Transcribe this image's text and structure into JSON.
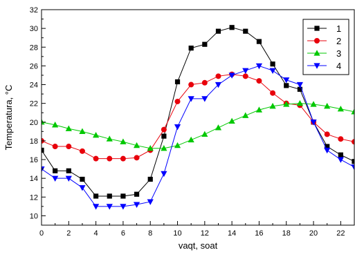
{
  "chart_data": {
    "type": "line",
    "xlabel": "vaqt, soat",
    "ylabel": "Temperatura, °C",
    "xlim": [
      0,
      23
    ],
    "ylim": [
      9,
      32
    ],
    "xticks": [
      0,
      2,
      4,
      6,
      8,
      10,
      12,
      14,
      16,
      18,
      20,
      22
    ],
    "yticks": [
      10,
      12,
      14,
      16,
      18,
      20,
      22,
      24,
      26,
      28,
      30,
      32
    ],
    "legend_position": "top-right",
    "grid": false,
    "x": [
      0,
      1,
      2,
      3,
      4,
      5,
      6,
      7,
      8,
      9,
      10,
      11,
      12,
      13,
      14,
      15,
      16,
      17,
      18,
      19,
      20,
      21,
      22,
      23
    ],
    "series": [
      {
        "name": "1",
        "color": "#000000",
        "marker": "square",
        "values": [
          17.0,
          14.8,
          14.8,
          13.9,
          12.1,
          12.1,
          12.1,
          12.3,
          13.9,
          18.5,
          24.3,
          27.9,
          28.3,
          29.7,
          30.1,
          29.7,
          28.6,
          26.2,
          23.9,
          23.5,
          20.0,
          17.4,
          16.5,
          15.8
        ]
      },
      {
        "name": "2",
        "color": "#e8000b",
        "marker": "circle",
        "values": [
          18.0,
          17.4,
          17.4,
          16.9,
          16.1,
          16.1,
          16.1,
          16.2,
          17.0,
          19.2,
          22.2,
          24.0,
          24.2,
          24.9,
          25.1,
          24.9,
          24.4,
          23.1,
          22.0,
          21.8,
          20.0,
          18.7,
          18.2,
          17.9
        ]
      },
      {
        "name": "3",
        "color": "#00c800",
        "marker": "triangle-up",
        "values": [
          20.0,
          19.7,
          19.3,
          19.0,
          18.6,
          18.2,
          17.9,
          17.5,
          17.2,
          17.2,
          17.5,
          18.1,
          18.7,
          19.4,
          20.1,
          20.7,
          21.3,
          21.7,
          21.9,
          22.0,
          21.9,
          21.7,
          21.4,
          21.1
        ]
      },
      {
        "name": "4",
        "color": "#0000ff",
        "marker": "triangle-down",
        "values": [
          15.0,
          14.0,
          14.0,
          13.0,
          11.0,
          11.0,
          11.0,
          11.2,
          11.5,
          14.5,
          19.5,
          22.5,
          22.5,
          24.0,
          25.0,
          25.5,
          26.0,
          25.5,
          24.5,
          24.0,
          20.0,
          17.0,
          16.0,
          15.2
        ]
      }
    ]
  }
}
